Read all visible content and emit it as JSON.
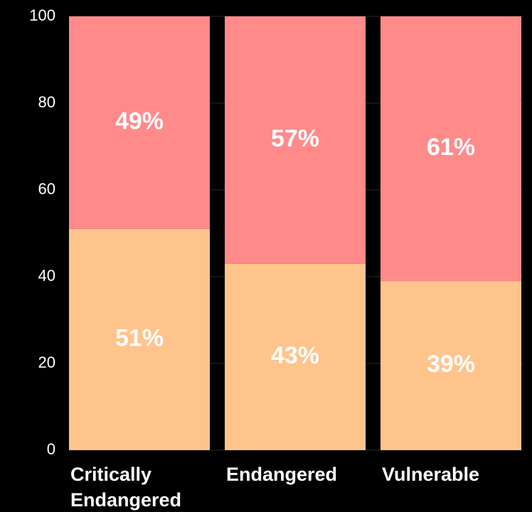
{
  "chart_data": {
    "type": "bar",
    "stacked": true,
    "categories": [
      [
        "Critically",
        "Endangered"
      ],
      [
        "Endangered"
      ],
      [
        "Vulnerable"
      ]
    ],
    "series": [
      {
        "values": [
          51,
          43,
          39
        ],
        "labels": [
          "51%",
          "43%",
          "39%"
        ],
        "color": "#FFC48C"
      },
      {
        "values": [
          49,
          57,
          61
        ],
        "labels": [
          "49%",
          "57%",
          "61%"
        ],
        "color": "#FF8A8A"
      }
    ],
    "ylim": [
      0,
      100
    ],
    "yticks": [
      0,
      20,
      40,
      60,
      80,
      100
    ],
    "grid": true,
    "background": "#000000"
  }
}
